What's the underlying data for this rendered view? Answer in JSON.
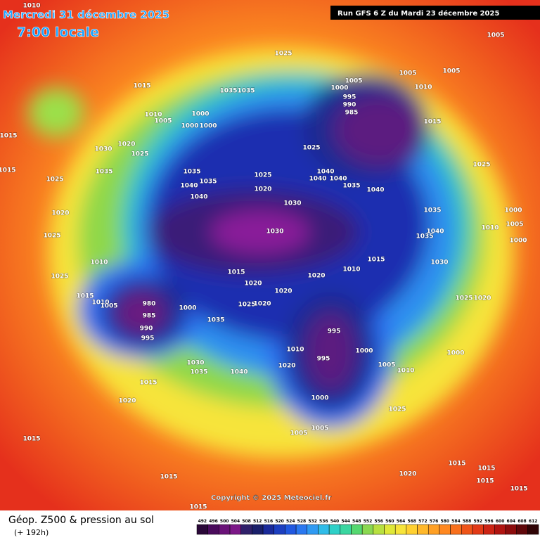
{
  "header": {
    "date": "Mercredi 31 décembre 2025",
    "time": "7:00 locale",
    "run": "Run GFS 6 Z du Mardi 23 décembre 2025"
  },
  "footer": {
    "copyright": "Copyright © 2025 Meteociel.fr",
    "title": "Géop. Z500 & pression au sol",
    "subtitle": "(+ 192h)"
  },
  "legend": {
    "values": [
      492,
      496,
      500,
      504,
      508,
      512,
      516,
      520,
      524,
      528,
      532,
      536,
      540,
      544,
      548,
      552,
      556,
      560,
      564,
      568,
      572,
      576,
      580,
      584,
      588,
      592,
      596,
      600,
      604,
      608,
      612
    ],
    "colors": [
      "#2a0838",
      "#4a0b5c",
      "#6a1278",
      "#7c1888",
      "#30206a",
      "#1a1f6a",
      "#1a2a9a",
      "#1c3fc0",
      "#2058e0",
      "#2a78f0",
      "#2f9af2",
      "#30bce8",
      "#2ed0c8",
      "#3ad6a0",
      "#55d870",
      "#8ad850",
      "#b8e040",
      "#dfe838",
      "#f7e43a",
      "#ffd030",
      "#ffb82a",
      "#ffa024",
      "#ff8820",
      "#f8701c",
      "#ee5418",
      "#e23a16",
      "#cc2414",
      "#b01410",
      "#8c0c0c",
      "#60080a",
      "#300406"
    ]
  },
  "isobar_labels": [
    1010,
    1005,
    1025,
    1005,
    1005,
    1005,
    1000,
    1010,
    1015,
    1035,
    1035,
    995,
    990,
    985,
    1000,
    1010,
    1005,
    1015,
    1000,
    1000,
    1015,
    1020,
    1030,
    1025,
    1025,
    1015,
    1025,
    1035,
    1035,
    1040,
    1025,
    1040,
    1040,
    1035,
    1040,
    1020,
    1025,
    1040,
    1035,
    1040,
    1030,
    1020,
    1035,
    1000,
    1010,
    1005,
    1000,
    1040,
    1030,
    1025,
    1035,
    1015,
    1010,
    1010,
    1020,
    1030,
    1015,
    1025,
    1020,
    1020,
    1025,
    1020,
    1015,
    1010,
    1005,
    980,
    985,
    1000,
    1025,
    1020,
    990,
    995,
    1035,
    995,
    1010,
    1000,
    995,
    1000,
    1005,
    1030,
    1035,
    1040,
    1020,
    1010,
    1015,
    1000,
    1020,
    1025,
    1005,
    1005,
    1015,
    1015,
    1015,
    1020,
    1015,
    1015,
    1015,
    1015
  ]
}
